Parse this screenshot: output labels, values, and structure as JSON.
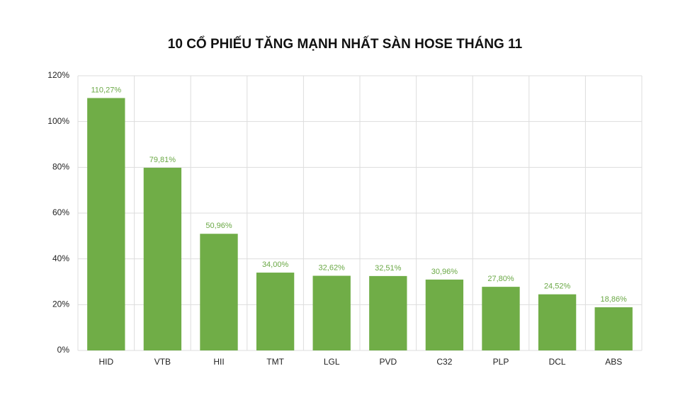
{
  "chart_data": {
    "type": "bar",
    "title": "10 CỔ PHIẾU TĂNG MẠNH NHẤT SÀN HOSE THÁNG 11",
    "categories": [
      "HID",
      "VTB",
      "HII",
      "TMT",
      "LGL",
      "PVD",
      "C32",
      "PLP",
      "DCL",
      "ABS"
    ],
    "values": [
      110.27,
      79.81,
      50.96,
      34.0,
      32.62,
      32.51,
      30.96,
      27.8,
      24.52,
      18.86
    ],
    "value_labels": [
      "110,27%",
      "79,81%",
      "50,96%",
      "34,00%",
      "32,62%",
      "32,51%",
      "30,96%",
      "27,80%",
      "24,52%",
      "18,86%"
    ],
    "color": "#70ad47",
    "ylim": [
      0,
      120
    ],
    "yticks": [
      {
        "value": 0,
        "label": "0%"
      },
      {
        "value": 20,
        "label": "20%"
      },
      {
        "value": 40,
        "label": "40%"
      },
      {
        "value": 60,
        "label": "60%"
      },
      {
        "value": 80,
        "label": "80%"
      },
      {
        "value": 100,
        "label": "100%"
      },
      {
        "value": 120,
        "label": "120%"
      }
    ],
    "grid": true
  }
}
